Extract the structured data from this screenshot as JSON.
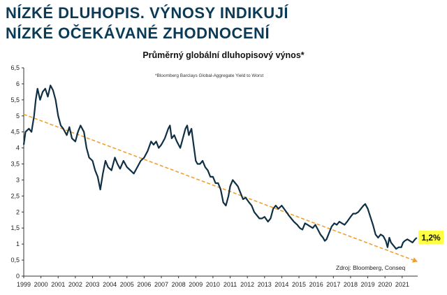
{
  "chart_data": {
    "type": "line",
    "title_lines": [
      "NÍZKÉ DLUHOPIS. VÝNOSY INDIKUJÍ",
      "NÍZKÉ OČEKÁVANÉ ZHODNOCENÍ"
    ],
    "subtitle": "Průměrný globální dluhopisový výnos*",
    "footnote": "*Bloomberg Barclays Global-Aggregate Yield to Worst",
    "source": "Zdroj: Bloomberg, Conseq",
    "xlabel": "",
    "ylabel": "",
    "xlim": [
      1999,
      2021.9
    ],
    "ylim": [
      0,
      6.5
    ],
    "x_ticks": [
      "1999",
      "2000",
      "2001",
      "2002",
      "2003",
      "2004",
      "2005",
      "2006",
      "2007",
      "2008",
      "2009",
      "2010",
      "2011",
      "2012",
      "2013",
      "2014",
      "2015",
      "2016",
      "2017",
      "2018",
      "2019",
      "2020",
      "2021"
    ],
    "y_ticks": [
      "0",
      "0,5",
      "1",
      "1,5",
      "2",
      "2,5",
      "3",
      "3,5",
      "4",
      "4,5",
      "5",
      "5,5",
      "6",
      "6,5"
    ],
    "series": [
      {
        "name": "Bloomberg Barclays Global-Aggregate Yield to Worst",
        "color": "#0e2f44",
        "points": [
          [
            1999.0,
            4.1
          ],
          [
            1999.1,
            4.5
          ],
          [
            1999.3,
            4.6
          ],
          [
            1999.45,
            4.5
          ],
          [
            1999.6,
            5.0
          ],
          [
            1999.7,
            5.5
          ],
          [
            1999.8,
            5.85
          ],
          [
            1999.95,
            5.5
          ],
          [
            2000.1,
            5.75
          ],
          [
            2000.25,
            5.85
          ],
          [
            2000.4,
            5.6
          ],
          [
            2000.55,
            5.95
          ],
          [
            2000.7,
            5.8
          ],
          [
            2000.85,
            5.5
          ],
          [
            2001.0,
            5.0
          ],
          [
            2001.15,
            4.7
          ],
          [
            2001.3,
            4.6
          ],
          [
            2001.5,
            4.4
          ],
          [
            2001.65,
            4.65
          ],
          [
            2001.8,
            4.3
          ],
          [
            2002.0,
            4.2
          ],
          [
            2002.15,
            4.5
          ],
          [
            2002.3,
            4.7
          ],
          [
            2002.5,
            4.5
          ],
          [
            2002.65,
            4.0
          ],
          [
            2002.8,
            3.7
          ],
          [
            2003.0,
            3.6
          ],
          [
            2003.15,
            3.3
          ],
          [
            2003.3,
            3.1
          ],
          [
            2003.45,
            2.7
          ],
          [
            2003.6,
            3.2
          ],
          [
            2003.75,
            3.6
          ],
          [
            2003.9,
            3.4
          ],
          [
            2004.1,
            3.3
          ],
          [
            2004.3,
            3.7
          ],
          [
            2004.45,
            3.5
          ],
          [
            2004.6,
            3.35
          ],
          [
            2004.8,
            3.6
          ],
          [
            2005.0,
            3.4
          ],
          [
            2005.2,
            3.3
          ],
          [
            2005.4,
            3.2
          ],
          [
            2005.6,
            3.4
          ],
          [
            2005.8,
            3.6
          ],
          [
            2006.0,
            3.7
          ],
          [
            2006.2,
            3.9
          ],
          [
            2006.4,
            4.2
          ],
          [
            2006.55,
            4.1
          ],
          [
            2006.7,
            4.2
          ],
          [
            2006.85,
            4.0
          ],
          [
            2007.0,
            4.1
          ],
          [
            2007.2,
            4.3
          ],
          [
            2007.4,
            4.6
          ],
          [
            2007.5,
            4.7
          ],
          [
            2007.6,
            4.3
          ],
          [
            2007.75,
            4.4
          ],
          [
            2007.9,
            4.2
          ],
          [
            2008.1,
            4.0
          ],
          [
            2008.25,
            4.3
          ],
          [
            2008.4,
            4.6
          ],
          [
            2008.5,
            4.7
          ],
          [
            2008.6,
            4.4
          ],
          [
            2008.75,
            4.6
          ],
          [
            2008.9,
            4.0
          ],
          [
            2009.0,
            3.6
          ],
          [
            2009.1,
            3.5
          ],
          [
            2009.25,
            3.5
          ],
          [
            2009.4,
            3.6
          ],
          [
            2009.55,
            3.4
          ],
          [
            2009.7,
            3.3
          ],
          [
            2009.85,
            3.1
          ],
          [
            2010.0,
            3.1
          ],
          [
            2010.15,
            2.9
          ],
          [
            2010.3,
            2.9
          ],
          [
            2010.45,
            2.7
          ],
          [
            2010.6,
            2.3
          ],
          [
            2010.75,
            2.2
          ],
          [
            2010.9,
            2.5
          ],
          [
            2011.0,
            2.8
          ],
          [
            2011.15,
            3.0
          ],
          [
            2011.3,
            2.9
          ],
          [
            2011.45,
            2.8
          ],
          [
            2011.6,
            2.6
          ],
          [
            2011.75,
            2.4
          ],
          [
            2011.9,
            2.45
          ],
          [
            2012.1,
            2.3
          ],
          [
            2012.25,
            2.2
          ],
          [
            2012.4,
            2.0
          ],
          [
            2012.55,
            1.9
          ],
          [
            2012.7,
            1.8
          ],
          [
            2012.85,
            1.8
          ],
          [
            2013.0,
            1.85
          ],
          [
            2013.2,
            1.7
          ],
          [
            2013.35,
            1.8
          ],
          [
            2013.5,
            2.1
          ],
          [
            2013.65,
            2.2
          ],
          [
            2013.8,
            2.1
          ],
          [
            2014.0,
            2.2
          ],
          [
            2014.2,
            2.05
          ],
          [
            2014.4,
            1.9
          ],
          [
            2014.55,
            1.8
          ],
          [
            2014.7,
            1.7
          ],
          [
            2014.9,
            1.6
          ],
          [
            2015.05,
            1.5
          ],
          [
            2015.2,
            1.45
          ],
          [
            2015.35,
            1.65
          ],
          [
            2015.5,
            1.6
          ],
          [
            2015.65,
            1.55
          ],
          [
            2015.8,
            1.5
          ],
          [
            2015.95,
            1.6
          ],
          [
            2016.1,
            1.45
          ],
          [
            2016.25,
            1.3
          ],
          [
            2016.4,
            1.2
          ],
          [
            2016.5,
            1.1
          ],
          [
            2016.6,
            1.15
          ],
          [
            2016.75,
            1.35
          ],
          [
            2016.9,
            1.55
          ],
          [
            2017.05,
            1.65
          ],
          [
            2017.2,
            1.6
          ],
          [
            2017.35,
            1.7
          ],
          [
            2017.5,
            1.65
          ],
          [
            2017.65,
            1.6
          ],
          [
            2017.8,
            1.7
          ],
          [
            2018.0,
            1.85
          ],
          [
            2018.15,
            1.95
          ],
          [
            2018.3,
            1.95
          ],
          [
            2018.45,
            2.0
          ],
          [
            2018.6,
            2.1
          ],
          [
            2018.75,
            2.2
          ],
          [
            2018.85,
            2.25
          ],
          [
            2019.0,
            2.1
          ],
          [
            2019.15,
            1.85
          ],
          [
            2019.3,
            1.6
          ],
          [
            2019.45,
            1.3
          ],
          [
            2019.6,
            1.2
          ],
          [
            2019.75,
            1.3
          ],
          [
            2019.9,
            1.25
          ],
          [
            2020.05,
            1.1
          ],
          [
            2020.15,
            0.9
          ],
          [
            2020.25,
            1.2
          ],
          [
            2020.35,
            1.05
          ],
          [
            2020.5,
            0.95
          ],
          [
            2020.65,
            0.85
          ],
          [
            2020.8,
            0.9
          ],
          [
            2020.95,
            0.9
          ],
          [
            2021.05,
            1.05
          ],
          [
            2021.15,
            1.1
          ],
          [
            2021.3,
            1.15
          ],
          [
            2021.45,
            1.1
          ],
          [
            2021.6,
            1.05
          ],
          [
            2021.75,
            1.15
          ],
          [
            2021.85,
            1.2
          ]
        ]
      }
    ],
    "trendline": {
      "color": "#f0a030",
      "from": [
        1999.0,
        5.05
      ],
      "to": [
        2021.9,
        0.45
      ]
    },
    "annotation": {
      "label": "1,2%",
      "value": 1.2,
      "background": "#ffff44"
    }
  }
}
